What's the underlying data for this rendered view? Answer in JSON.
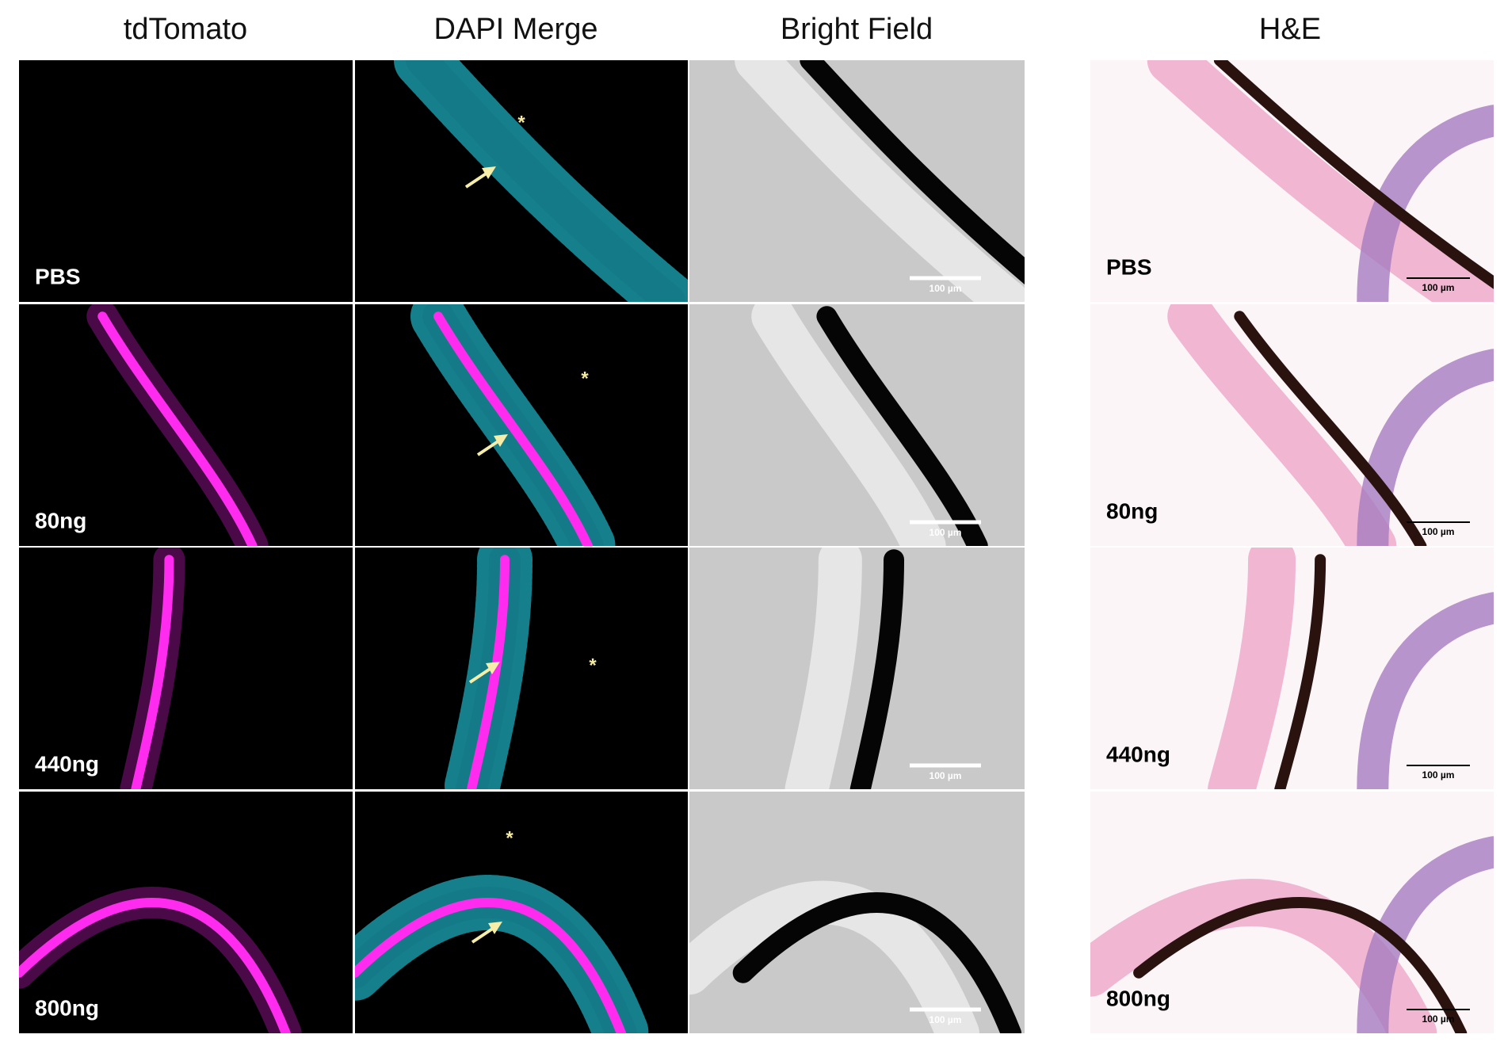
{
  "columns": [
    "tdTomato",
    "DAPI Merge",
    "Bright Field",
    "H&E"
  ],
  "rows": [
    {
      "label": "PBS"
    },
    {
      "label": "80ng"
    },
    {
      "label": "440ng"
    },
    {
      "label": "800ng"
    }
  ],
  "scale_bar": "100 µm",
  "marker": "*"
}
